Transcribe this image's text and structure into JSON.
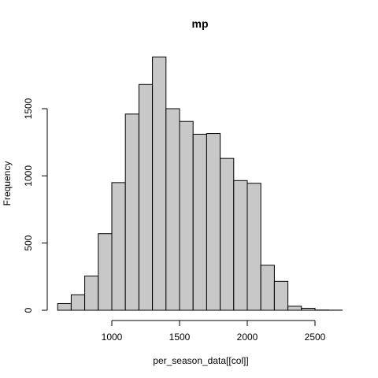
{
  "chart_data": {
    "type": "bar",
    "title": "mp",
    "xlabel": "per_season_data[[col]]",
    "ylabel": "Frequency",
    "bin_width": 100,
    "bins": [
      {
        "start": 600,
        "end": 700,
        "count": 50
      },
      {
        "start": 700,
        "end": 800,
        "count": 115
      },
      {
        "start": 800,
        "end": 900,
        "count": 255
      },
      {
        "start": 900,
        "end": 1000,
        "count": 570
      },
      {
        "start": 1000,
        "end": 1100,
        "count": 950
      },
      {
        "start": 1100,
        "end": 1200,
        "count": 1460
      },
      {
        "start": 1200,
        "end": 1300,
        "count": 1680
      },
      {
        "start": 1300,
        "end": 1400,
        "count": 1885
      },
      {
        "start": 1400,
        "end": 1500,
        "count": 1500
      },
      {
        "start": 1500,
        "end": 1600,
        "count": 1405
      },
      {
        "start": 1600,
        "end": 1700,
        "count": 1310
      },
      {
        "start": 1700,
        "end": 1800,
        "count": 1315
      },
      {
        "start": 1800,
        "end": 1900,
        "count": 1130
      },
      {
        "start": 1900,
        "end": 2000,
        "count": 965
      },
      {
        "start": 2000,
        "end": 2100,
        "count": 945
      },
      {
        "start": 2100,
        "end": 2200,
        "count": 335
      },
      {
        "start": 2200,
        "end": 2300,
        "count": 215
      },
      {
        "start": 2300,
        "end": 2400,
        "count": 30
      },
      {
        "start": 2400,
        "end": 2500,
        "count": 15
      },
      {
        "start": 2500,
        "end": 2600,
        "count": 2
      },
      {
        "start": 2600,
        "end": 2700,
        "count": 1
      }
    ],
    "xlim": [
      600,
      2700
    ],
    "ylim": [
      0,
      1885
    ],
    "x_ticks": [
      1000,
      1500,
      2000,
      2500
    ],
    "y_ticks": [
      0,
      500,
      1000,
      1500
    ],
    "grid": false,
    "bar_color": "#c8c8c8",
    "edge_color": "#000000"
  }
}
